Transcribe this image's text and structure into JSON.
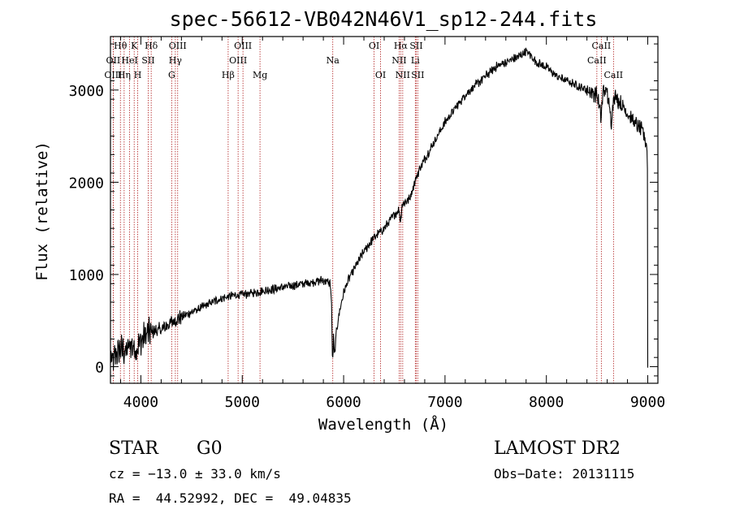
{
  "chart_data": {
    "type": "line",
    "title": "spec-56612-VB042N46V1_sp12-244.fits",
    "xlabel": "Wavelength (Å)",
    "ylabel": "Flux (relative)",
    "xlim": [
      3700,
      9100
    ],
    "ylim": [
      -180,
      3580
    ],
    "x_ticks": [
      4000,
      5000,
      6000,
      7000,
      8000,
      9000
    ],
    "y_ticks": [
      0,
      1000,
      2000,
      3000
    ],
    "grid": false,
    "spectrum_anchors": {
      "x": [
        3700,
        3720,
        3750,
        3800,
        3850,
        3900,
        3950,
        3990,
        4050,
        4100,
        4200,
        4300,
        4400,
        4500,
        4600,
        4700,
        4800,
        4900,
        5000,
        5100,
        5200,
        5300,
        5400,
        5500,
        5600,
        5700,
        5800,
        5870,
        5880,
        5890,
        5895,
        5900,
        5910,
        5930,
        5960,
        6000,
        6050,
        6100,
        6200,
        6300,
        6400,
        6500,
        6550,
        6560,
        6575,
        6600,
        6650,
        6700,
        6750,
        6800,
        6900,
        7000,
        7100,
        7200,
        7300,
        7400,
        7500,
        7600,
        7700,
        7750,
        7800,
        7850,
        7900,
        8000,
        8100,
        8200,
        8300,
        8400,
        8500,
        8540,
        8560,
        8600,
        8640,
        8665,
        8700,
        8800,
        8900,
        8950,
        8990,
        9000
      ],
      "y": [
        100,
        50,
        120,
        200,
        150,
        250,
        180,
        260,
        350,
        380,
        400,
        480,
        540,
        590,
        640,
        700,
        740,
        770,
        780,
        800,
        820,
        840,
        860,
        880,
        900,
        920,
        940,
        900,
        700,
        100,
        50,
        350,
        100,
        400,
        600,
        800,
        950,
        1050,
        1250,
        1400,
        1500,
        1650,
        1700,
        1550,
        1750,
        1780,
        1820,
        2000,
        2150,
        2250,
        2450,
        2650,
        2800,
        2950,
        3050,
        3150,
        3250,
        3300,
        3350,
        3380,
        3420,
        3370,
        3300,
        3250,
        3150,
        3100,
        3050,
        3000,
        2950,
        2700,
        3000,
        2980,
        2650,
        2950,
        2900,
        2750,
        2600,
        2550,
        2400,
        2150
      ],
      "noise_amplitude": 40
    },
    "spectral_lines": [
      {
        "label": "OII",
        "x": 3727,
        "row": 2
      },
      {
        "label": "OIII",
        "x": 3727,
        "row": 3
      },
      {
        "label": "Hθ",
        "x": 3798,
        "row": 1
      },
      {
        "label": "Hη",
        "x": 3835,
        "row": 3
      },
      {
        "label": "HeI",
        "x": 3889,
        "row": 2
      },
      {
        "label": "K",
        "x": 3934,
        "row": 1
      },
      {
        "label": "H",
        "x": 3969,
        "row": 3
      },
      {
        "label": "SII",
        "x": 4072,
        "row": 2
      },
      {
        "label": "Hδ",
        "x": 4102,
        "row": 1
      },
      {
        "label": "OIII",
        "x": 4363,
        "row": 1
      },
      {
        "label": "Hγ",
        "x": 4340,
        "row": 2
      },
      {
        "label": "G",
        "x": 4304,
        "row": 3
      },
      {
        "label": "Hβ",
        "x": 4861,
        "row": 3
      },
      {
        "label": "OIII",
        "x": 4959,
        "row": 2
      },
      {
        "label": "OIII",
        "x": 5007,
        "row": 1
      },
      {
        "label": "Mg",
        "x": 5175,
        "row": 3
      },
      {
        "label": "Na",
        "x": 5893,
        "row": 2
      },
      {
        "label": "OI",
        "x": 6300,
        "row": 1
      },
      {
        "label": "OI",
        "x": 6364,
        "row": 3
      },
      {
        "label": "NII",
        "x": 6548,
        "row": 2
      },
      {
        "label": "Hα",
        "x": 6563,
        "row": 1
      },
      {
        "label": "NII",
        "x": 6583,
        "row": 3
      },
      {
        "label": "Li",
        "x": 6707,
        "row": 2
      },
      {
        "label": "SII",
        "x": 6716,
        "row": 1
      },
      {
        "label": "SII",
        "x": 6731,
        "row": 3
      },
      {
        "label": "CaII",
        "x": 8498,
        "row": 2
      },
      {
        "label": "CaII",
        "x": 8542,
        "row": 1
      },
      {
        "label": "CaII",
        "x": 8662,
        "row": 3
      }
    ]
  },
  "info": {
    "class": "STAR",
    "subclass": "G0",
    "survey": "LAMOST DR2",
    "redshift": "cz = −13.0 ± 33.0 km/s",
    "obs_date": "Obs−Date: 20131115",
    "coords": "RA =  44.52992, DEC =  49.04835"
  },
  "colors": {
    "spectrum": "#000000",
    "line_markers": "#b01e1e",
    "axes": "#000000"
  }
}
